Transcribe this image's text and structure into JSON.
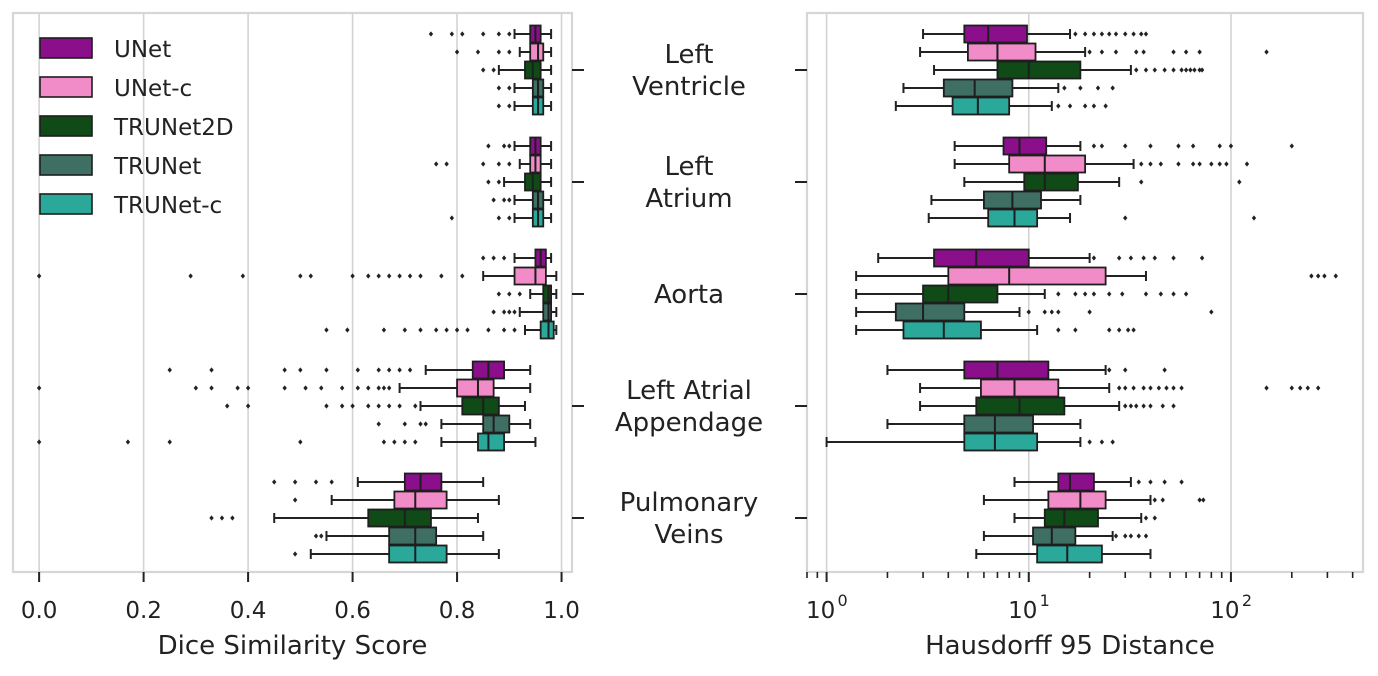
{
  "chart_data": {
    "type": "boxplot",
    "categories": [
      "Left Ventricle",
      "Left Atrium",
      "Aorta",
      "Left Atrial Appendage",
      "Pulmonary Veins"
    ],
    "category_lines": [
      [
        "Left",
        "Ventricle"
      ],
      [
        "Left",
        "Atrium"
      ],
      [
        "Aorta"
      ],
      [
        "Left Atrial",
        "Appendage"
      ],
      [
        "Pulmonary",
        "Veins"
      ]
    ],
    "legend": [
      {
        "name": "UNet",
        "color": "#8b0f8b"
      },
      {
        "name": "UNet-c",
        "color": "#f28cc8"
      },
      {
        "name": "TRUNet2D",
        "color": "#0f4a17"
      },
      {
        "name": "TRUNet",
        "color": "#3f6f63"
      },
      {
        "name": "TRUNet-c",
        "color": "#2aa89a"
      }
    ],
    "panels": [
      {
        "name": "dice",
        "xlabel": "Dice Similarity Score",
        "scale": "linear",
        "xlim": [
          -0.05,
          1.02
        ],
        "xticks": [
          0.0,
          0.2,
          0.4,
          0.6,
          0.8,
          1.0
        ],
        "xtick_labels": [
          "0.0",
          "0.2",
          "0.4",
          "0.6",
          "0.8",
          "1.0"
        ],
        "series": [
          {
            "name": "UNet",
            "data": [
              [
                0.91,
                0.94,
                0.95,
                0.96,
                0.98
              ],
              [
                0.91,
                0.94,
                0.95,
                0.96,
                0.98
              ],
              [
                0.91,
                0.95,
                0.96,
                0.97,
                0.98
              ],
              [
                0.74,
                0.83,
                0.86,
                0.89,
                0.94
              ],
              [
                0.61,
                0.7,
                0.73,
                0.77,
                0.85
              ]
            ],
            "outliers": [
              [
                0.75,
                0.79,
                0.81,
                0.85,
                0.88,
                0.9
              ],
              [
                0.86,
                0.89,
                0.9
              ],
              [
                0.85,
                0.87,
                0.89
              ],
              [
                0.25,
                0.33,
                0.47,
                0.5,
                0.55,
                0.61,
                0.65,
                0.67,
                0.69,
                0.71
              ],
              [
                0.45,
                0.49,
                0.53,
                0.56
              ]
            ]
          },
          {
            "name": "UNet-c",
            "data": [
              [
                0.92,
                0.94,
                0.955,
                0.965,
                0.98
              ],
              [
                0.92,
                0.94,
                0.95,
                0.96,
                0.98
              ],
              [
                0.85,
                0.91,
                0.95,
                0.97,
                0.99
              ],
              [
                0.69,
                0.8,
                0.84,
                0.87,
                0.94
              ],
              [
                0.56,
                0.68,
                0.72,
                0.78,
                0.88
              ]
            ],
            "outliers": [
              [
                0.8,
                0.84,
                0.88,
                0.9
              ],
              [
                0.76,
                0.78,
                0.85,
                0.88,
                0.9
              ],
              [
                0.0,
                0.29,
                0.39,
                0.5,
                0.52,
                0.6,
                0.63,
                0.65,
                0.67,
                0.69,
                0.71,
                0.73,
                0.77,
                0.81
              ],
              [
                0.0,
                0.3,
                0.33,
                0.38,
                0.4,
                0.47,
                0.51,
                0.54,
                0.58,
                0.61,
                0.63,
                0.65,
                0.66,
                0.67
              ],
              [
                0.49
              ]
            ]
          },
          {
            "name": "TRUNet2D",
            "data": [
              [
                0.88,
                0.93,
                0.945,
                0.96,
                0.98
              ],
              [
                0.89,
                0.93,
                0.945,
                0.96,
                0.98
              ],
              [
                0.94,
                0.965,
                0.975,
                0.98,
                0.99
              ],
              [
                0.73,
                0.81,
                0.85,
                0.88,
                0.93
              ],
              [
                0.45,
                0.63,
                0.7,
                0.75,
                0.84
              ]
            ],
            "outliers": [
              [
                0.85,
                0.87
              ],
              [
                0.86,
                0.88
              ],
              [
                0.88,
                0.9,
                0.92
              ],
              [
                0.36,
                0.4,
                0.55,
                0.58,
                0.6,
                0.63,
                0.65,
                0.67,
                0.69,
                0.72
              ],
              [
                0.33,
                0.35,
                0.37
              ]
            ]
          },
          {
            "name": "TRUNet",
            "data": [
              [
                0.91,
                0.945,
                0.955,
                0.965,
                0.98
              ],
              [
                0.91,
                0.945,
                0.955,
                0.965,
                0.98
              ],
              [
                0.92,
                0.965,
                0.975,
                0.98,
                0.99
              ],
              [
                0.77,
                0.85,
                0.87,
                0.9,
                0.94
              ],
              [
                0.55,
                0.67,
                0.72,
                0.76,
                0.85
              ]
            ],
            "outliers": [
              [
                0.88,
                0.9
              ],
              [
                0.87,
                0.89,
                0.9
              ],
              [
                0.87,
                0.89,
                0.9,
                0.91
              ],
              [
                0.65,
                0.7,
                0.73,
                0.74
              ],
              [
                0.53,
                0.54
              ]
            ]
          },
          {
            "name": "TRUNet-c",
            "data": [
              [
                0.91,
                0.945,
                0.955,
                0.965,
                0.98
              ],
              [
                0.91,
                0.945,
                0.955,
                0.965,
                0.98
              ],
              [
                0.93,
                0.96,
                0.975,
                0.985,
                0.99
              ],
              [
                0.77,
                0.84,
                0.86,
                0.89,
                0.95
              ],
              [
                0.52,
                0.67,
                0.72,
                0.78,
                0.88
              ]
            ],
            "outliers": [
              [
                0.88,
                0.9
              ],
              [
                0.79,
                0.88,
                0.9
              ],
              [
                0.55,
                0.59,
                0.66,
                0.7,
                0.73,
                0.76,
                0.78,
                0.8,
                0.82,
                0.86,
                0.89,
                0.91
              ],
              [
                0.0,
                0.17,
                0.25,
                0.5,
                0.66,
                0.68,
                0.7,
                0.72
              ],
              [
                0.49
              ]
            ]
          }
        ]
      },
      {
        "name": "hausdorff",
        "xlabel": "Hausdorff 95 Distance",
        "scale": "log",
        "xlim": [
          0.8,
          450
        ],
        "xticks": [
          1,
          10,
          100
        ],
        "xtick_labels": [
          "10",
          "10",
          "10"
        ],
        "xtick_exponents": [
          "0",
          "1",
          "2"
        ],
        "series": [
          {
            "name": "UNet",
            "data": [
              [
                3.0,
                4.8,
                6.3,
                9.8,
                16.0
              ],
              [
                4.3,
                7.5,
                9.0,
                12.2,
                18.0
              ],
              [
                1.8,
                3.4,
                5.5,
                10.0,
                20.0
              ],
              [
                2.0,
                4.8,
                7.0,
                12.5,
                24.0
              ],
              [
                8.5,
                14.0,
                16.0,
                21.0,
                32.0
              ]
            ],
            "outliers": [
              [
                17,
                19,
                21,
                23,
                25,
                27,
                30,
                33,
                36,
                38
              ],
              [
                21,
                23,
                30,
                40,
                55,
                65,
                88,
                100,
                200
              ],
              [
                21,
                28,
                32,
                37,
                42,
                52,
                72
              ],
              [
                25,
                30,
                47
              ],
              [
                35,
                40,
                47,
                57
              ]
            ]
          },
          {
            "name": "UNet-c",
            "data": [
              [
                2.9,
                5.0,
                7.0,
                10.8,
                19.0
              ],
              [
                4.3,
                8.0,
                12.0,
                19.0,
                33.0
              ],
              [
                1.4,
                4.0,
                8.0,
                24.0,
                38.0
              ],
              [
                2.9,
                5.8,
                8.5,
                14.0,
                25.0
              ],
              [
                6.0,
                12.5,
                18.0,
                24.0,
                40.0
              ]
            ],
            "outliers": [
              [
                20,
                23,
                27,
                34,
                37,
                52,
                60,
                70,
                150
              ],
              [
                36,
                40,
                45,
                55,
                65,
                70,
                80,
                88,
                95,
                120
              ],
              [
                250,
                270,
                290,
                330
              ],
              [
                28,
                30,
                33,
                37,
                40,
                44,
                48,
                52,
                57,
                150,
                200,
                220,
                240,
                270
              ],
              [
                42,
                46,
                70,
                73
              ]
            ]
          },
          {
            "name": "TRUNet2D",
            "data": [
              [
                3.4,
                7.0,
                10.0,
                18.0,
                32.0
              ],
              [
                4.8,
                9.5,
                12.0,
                17.5,
                28.0
              ],
              [
                1.4,
                3.0,
                4.0,
                7.0,
                12.0
              ],
              [
                2.9,
                5.5,
                9.0,
                15.0,
                28.0
              ],
              [
                8.5,
                12.0,
                15.0,
                22.0,
                36.0
              ]
            ],
            "outliers": [
              [
                34,
                38,
                42,
                47,
                52,
                57,
                60,
                63,
                66,
                70,
                72
              ],
              [
                36,
                110
              ],
              [
                14,
                17,
                19,
                21,
                25,
                29,
                38,
                45,
                52,
                60
              ],
              [
                30,
                32,
                34,
                37,
                40,
                46,
                52
              ],
              [
                38,
                42
              ]
            ]
          },
          {
            "name": "TRUNet",
            "data": [
              [
                2.4,
                3.8,
                5.4,
                8.3,
                14.0
              ],
              [
                3.3,
                6.0,
                8.3,
                11.5,
                18.0
              ],
              [
                1.4,
                2.2,
                3.0,
                4.8,
                9.0
              ],
              [
                2.0,
                4.8,
                6.8,
                10.5,
                18.0
              ],
              [
                6.0,
                10.5,
                13.0,
                17.0,
                26.0
              ]
            ],
            "outliers": [
              [
                15,
                18,
                22,
                26
              ],
              [],
              [
                10,
                12,
                13,
                14,
                20,
                80
              ],
              [],
              [
                27,
                30,
                32,
                35,
                38
              ]
            ]
          },
          {
            "name": "TRUNet-c",
            "data": [
              [
                2.2,
                4.2,
                5.6,
                8.0,
                13.0
              ],
              [
                3.2,
                6.3,
                8.5,
                11.0,
                16.0
              ],
              [
                1.4,
                2.4,
                3.8,
                5.8,
                11.0
              ],
              [
                1.0,
                4.8,
                6.8,
                11.0,
                18.0
              ],
              [
                5.5,
                11.0,
                15.5,
                23.0,
                40.0
              ]
            ],
            "outliers": [
              [
                14,
                16,
                19,
                21,
                24
              ],
              [
                30,
                130
              ],
              [
                14,
                17,
                25,
                28,
                31,
                33
              ],
              [
                20,
                23,
                26
              ],
              []
            ]
          }
        ]
      }
    ]
  }
}
